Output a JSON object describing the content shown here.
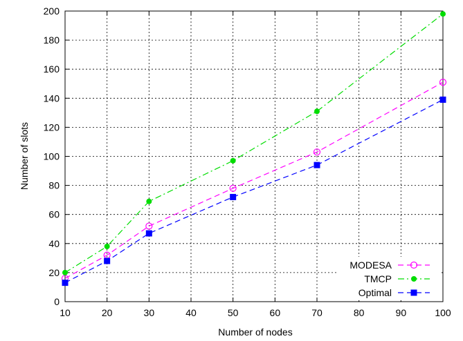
{
  "chart_data": {
    "type": "line",
    "title": "",
    "xlabel": "Number of nodes",
    "ylabel": "Number of slots",
    "xlim": [
      10,
      100
    ],
    "ylim": [
      0,
      200
    ],
    "xticks": [
      10,
      20,
      30,
      40,
      50,
      60,
      70,
      80,
      90,
      100
    ],
    "yticks": [
      0,
      20,
      40,
      60,
      80,
      100,
      120,
      140,
      160,
      180,
      200
    ],
    "grid": true,
    "legend_position": "bottom-right",
    "series": [
      {
        "name": "MODESA",
        "color": "#ff00ff",
        "line_style": "dashed",
        "marker": "open-circle",
        "x": [
          10,
          20,
          30,
          50,
          70,
          100
        ],
        "y": [
          16,
          32,
          52,
          78,
          103,
          151
        ]
      },
      {
        "name": "TMCP",
        "color": "#00dd00",
        "line_style": "dash-dot",
        "marker": "filled-circle",
        "x": [
          10,
          20,
          30,
          50,
          70,
          100
        ],
        "y": [
          20,
          38,
          69,
          97,
          131,
          198
        ]
      },
      {
        "name": "Optimal",
        "color": "#0000ff",
        "line_style": "dashed",
        "marker": "filled-square",
        "x": [
          10,
          20,
          30,
          50,
          70,
          100
        ],
        "y": [
          13,
          28,
          47,
          72,
          94,
          139
        ]
      }
    ]
  }
}
